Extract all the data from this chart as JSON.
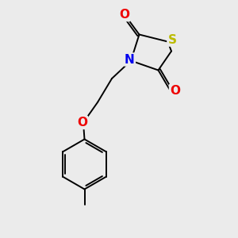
{
  "bg_color": "#ebebeb",
  "atom_colors": {
    "C": "#000000",
    "N": "#0000ee",
    "O": "#ee0000",
    "S": "#bbbb00"
  },
  "bond_color": "#000000",
  "bond_width": 1.4,
  "font_size_atoms": 10.5
}
